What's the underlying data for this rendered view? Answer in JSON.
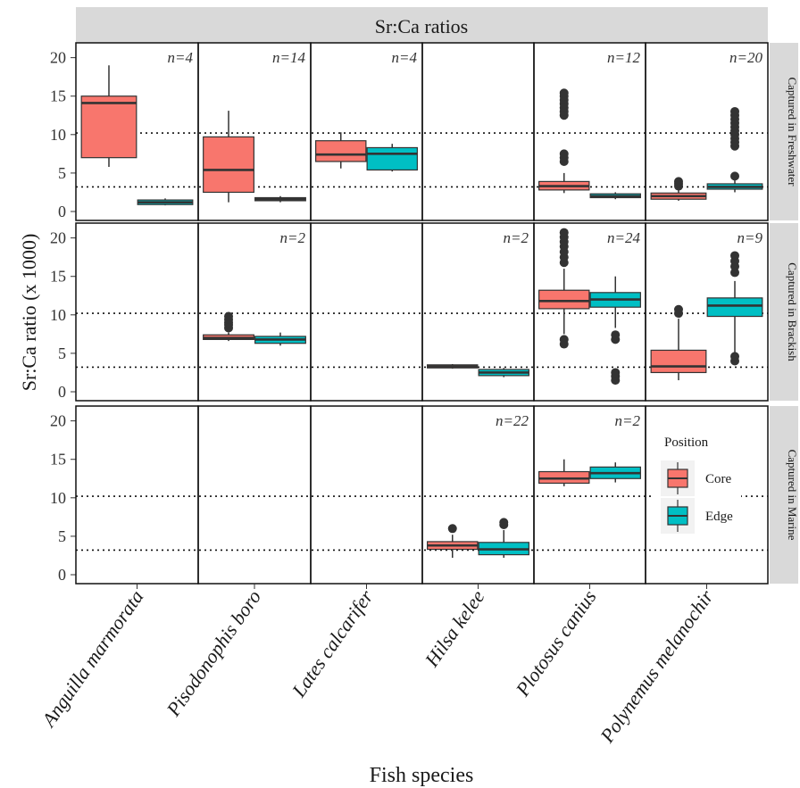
{
  "chart_data": {
    "type": "box",
    "title": "Sr:Ca ratios",
    "xlabel": "Fish species",
    "ylabel": "Sr:Ca ratio (x 1000)",
    "ylim": [
      0,
      21
    ],
    "yticks": [
      0,
      5,
      10,
      15,
      20
    ],
    "reference_lines": [
      3.2,
      10.2
    ],
    "species": [
      "Anguilla marmorata",
      "Pisodonophis boro",
      "Lates calcarifer",
      "Hilsa kelee",
      "Plotosus canius",
      "Polynemus melanochir"
    ],
    "rows": [
      "Captured in Freshwater",
      "Captured in Brackish",
      "Captured in Marine"
    ],
    "legend": {
      "title": "Position",
      "entries": [
        {
          "name": "Core",
          "color": "#F8766D"
        },
        {
          "name": "Edge",
          "color": "#00BFC4"
        }
      ]
    },
    "panels": [
      {
        "row": 0,
        "col": 0,
        "n": "n=4",
        "boxes": [
          {
            "series": "Core",
            "whislo": 5.8,
            "q1": 7.0,
            "med": 14.1,
            "q3": 15.0,
            "whishi": 19.0,
            "fliers": []
          },
          {
            "series": "Edge",
            "whislo": 0.8,
            "q1": 0.9,
            "med": 1.2,
            "q3": 1.5,
            "whishi": 1.7,
            "fliers": []
          }
        ]
      },
      {
        "row": 0,
        "col": 1,
        "n": "n=14",
        "boxes": [
          {
            "series": "Core",
            "whislo": 1.2,
            "q1": 2.5,
            "med": 5.4,
            "q3": 9.7,
            "whishi": 13.1,
            "fliers": []
          },
          {
            "series": "Edge",
            "whislo": 1.2,
            "q1": 1.4,
            "med": 1.6,
            "q3": 1.8,
            "whishi": 2.0,
            "fliers": []
          }
        ]
      },
      {
        "row": 0,
        "col": 2,
        "n": "n=4",
        "boxes": [
          {
            "series": "Core",
            "whislo": 5.6,
            "q1": 6.5,
            "med": 7.4,
            "q3": 9.2,
            "whishi": 10.3,
            "fliers": []
          },
          {
            "series": "Edge",
            "whislo": 5.2,
            "q1": 5.4,
            "med": 7.5,
            "q3": 8.3,
            "whishi": 8.8,
            "fliers": []
          }
        ]
      },
      {
        "row": 0,
        "col": 3,
        "n": "",
        "boxes": []
      },
      {
        "row": 0,
        "col": 4,
        "n": "n=12",
        "boxes": [
          {
            "series": "Core",
            "whislo": 2.4,
            "q1": 2.8,
            "med": 3.3,
            "q3": 3.9,
            "whishi": 5.0,
            "fliers": [
              6.5,
              7.0,
              7.5,
              12.5,
              13.0,
              13.5,
              14.0,
              14.5,
              15.0,
              15.4
            ]
          },
          {
            "series": "Edge",
            "whislo": 1.6,
            "q1": 1.8,
            "med": 2.0,
            "q3": 2.3,
            "whishi": 2.5,
            "fliers": []
          }
        ]
      },
      {
        "row": 0,
        "col": 5,
        "n": "n=20",
        "boxes": [
          {
            "series": "Core",
            "whislo": 1.4,
            "q1": 1.6,
            "med": 2.0,
            "q3": 2.4,
            "whishi": 3.0,
            "fliers": [
              3.3,
              3.6,
              3.9
            ]
          },
          {
            "series": "Edge",
            "whislo": 2.5,
            "q1": 2.9,
            "med": 3.2,
            "q3": 3.6,
            "whishi": 4.3,
            "fliers": [
              4.6,
              8.5,
              9.0,
              9.5,
              10.0,
              10.5,
              11.0,
              11.5,
              12.0,
              12.5,
              13.0
            ]
          }
        ]
      },
      {
        "row": 1,
        "col": 0,
        "n": "",
        "boxes": []
      },
      {
        "row": 1,
        "col": 1,
        "n": "n=2",
        "boxes": [
          {
            "series": "Core",
            "whislo": 6.6,
            "q1": 6.8,
            "med": 7.0,
            "q3": 7.4,
            "whishi": 7.7,
            "fliers": [
              8.3,
              8.7,
              9.0,
              9.4,
              9.8
            ]
          },
          {
            "series": "Edge",
            "whislo": 6.0,
            "q1": 6.3,
            "med": 6.8,
            "q3": 7.2,
            "whishi": 7.7,
            "fliers": []
          }
        ]
      },
      {
        "row": 1,
        "col": 2,
        "n": "",
        "boxes": []
      },
      {
        "row": 1,
        "col": 3,
        "n": "n=2",
        "boxes": [
          {
            "series": "Core",
            "whislo": 3.0,
            "q1": 3.1,
            "med": 3.3,
            "q3": 3.5,
            "whishi": 3.6,
            "fliers": []
          },
          {
            "series": "Edge",
            "whislo": 1.9,
            "q1": 2.1,
            "med": 2.5,
            "q3": 2.9,
            "whishi": 3.1,
            "fliers": []
          }
        ]
      },
      {
        "row": 1,
        "col": 4,
        "n": "n=24",
        "boxes": [
          {
            "series": "Core",
            "whislo": 7.5,
            "q1": 10.8,
            "med": 11.8,
            "q3": 13.2,
            "whishi": 16.0,
            "fliers": [
              6.2,
              6.8,
              16.8,
              17.5,
              18.2,
              18.9,
              19.5,
              20.1,
              20.7
            ]
          },
          {
            "series": "Edge",
            "whislo": 8.3,
            "q1": 11.0,
            "med": 12.0,
            "q3": 12.9,
            "whishi": 15.0,
            "fliers": [
              1.5,
              2.0,
              2.5,
              6.8,
              7.4
            ]
          }
        ]
      },
      {
        "row": 1,
        "col": 5,
        "n": "n=9",
        "boxes": [
          {
            "series": "Core",
            "whislo": 1.5,
            "q1": 2.5,
            "med": 3.3,
            "q3": 5.4,
            "whishi": 9.5,
            "fliers": [
              10.2,
              10.7
            ]
          },
          {
            "series": "Edge",
            "whislo": 5.0,
            "q1": 9.8,
            "med": 11.2,
            "q3": 12.2,
            "whishi": 14.4,
            "fliers": [
              4.0,
              4.6,
              15.5,
              16.3,
              17.0,
              17.7
            ]
          }
        ]
      },
      {
        "row": 2,
        "col": 0,
        "n": "",
        "boxes": []
      },
      {
        "row": 2,
        "col": 1,
        "n": "",
        "boxes": []
      },
      {
        "row": 2,
        "col": 2,
        "n": "",
        "boxes": []
      },
      {
        "row": 2,
        "col": 3,
        "n": "n=22",
        "boxes": [
          {
            "series": "Core",
            "whislo": 2.2,
            "q1": 3.3,
            "med": 3.8,
            "q3": 4.3,
            "whishi": 5.2,
            "fliers": [
              6.0
            ]
          },
          {
            "series": "Edge",
            "whislo": 2.2,
            "q1": 2.6,
            "med": 3.3,
            "q3": 4.2,
            "whishi": 5.8,
            "fliers": [
              6.5,
              6.8
            ]
          }
        ]
      },
      {
        "row": 2,
        "col": 4,
        "n": "n=2",
        "boxes": [
          {
            "series": "Core",
            "whislo": 11.5,
            "q1": 11.9,
            "med": 12.5,
            "q3": 13.4,
            "whishi": 15.0,
            "fliers": []
          },
          {
            "series": "Edge",
            "whislo": 12.0,
            "q1": 12.5,
            "med": 13.2,
            "q3": 14.0,
            "whishi": 14.6,
            "fliers": []
          }
        ]
      },
      {
        "row": 2,
        "col": 5,
        "n": "",
        "boxes": []
      }
    ]
  }
}
